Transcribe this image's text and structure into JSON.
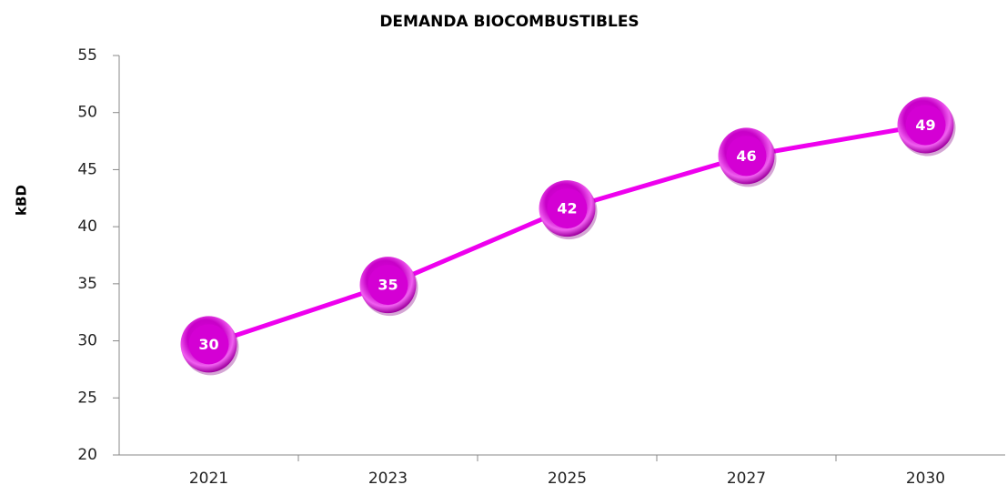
{
  "chart_data": {
    "type": "line",
    "title": "DEMANDA BIOCOMBUSTIBLES",
    "y_label": "kBD",
    "categories": [
      "2021",
      "2023",
      "2025",
      "2027",
      "2030"
    ],
    "values": [
      29.7,
      34.9,
      41.6,
      46.2,
      48.9
    ],
    "value_labels": [
      "30",
      "35",
      "42",
      "46",
      "49"
    ],
    "color": "#ee00ee",
    "ylim": [
      20,
      55
    ],
    "yticks": [
      20,
      25,
      30,
      35,
      40,
      45,
      50,
      55
    ],
    "grid": false
  }
}
